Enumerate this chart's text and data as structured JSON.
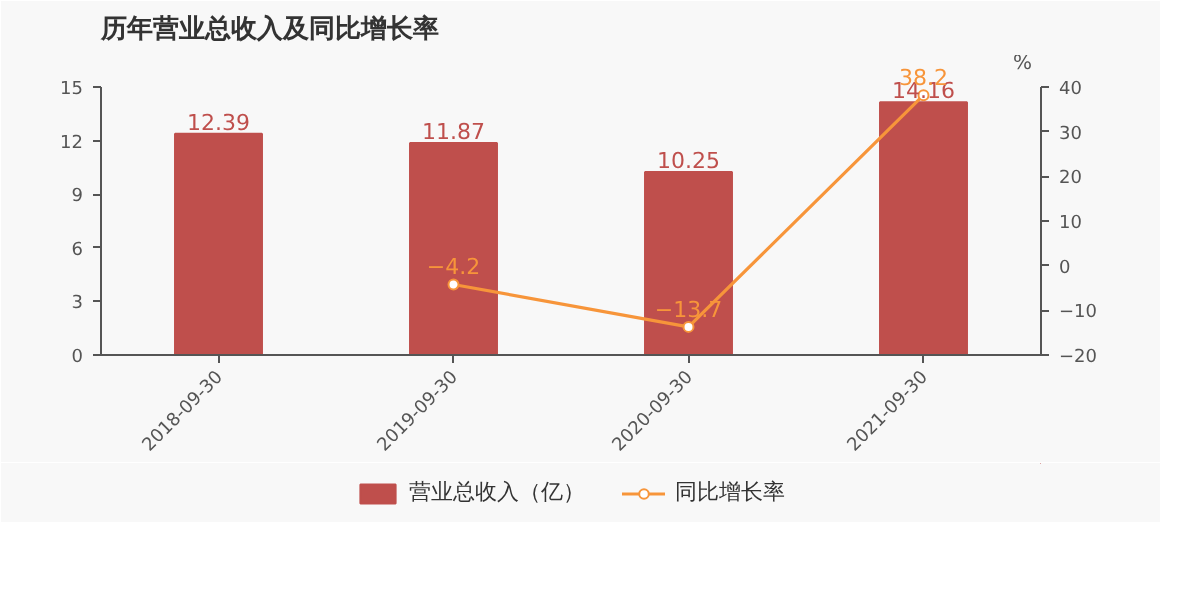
{
  "chart_data": {
    "type": "bar",
    "title": "历年营业总收入及同比增长率",
    "y2label": "%",
    "categories": [
      "2018-09-30",
      "2019-09-30",
      "2020-09-30",
      "2021-09-30"
    ],
    "series": [
      {
        "name": "营业总收入（亿）",
        "color": "#bf4f4c",
        "values": [
          12.39,
          11.87,
          10.25,
          14.16
        ]
      },
      {
        "name": "同比增长率",
        "type": "line",
        "axis": "y2",
        "color": "#f7953a",
        "marker": "circle",
        "values": [
          null,
          -4.2,
          -13.7,
          38.2
        ]
      }
    ],
    "ylim": [
      0,
      15
    ],
    "yticks": [
      0,
      3,
      6,
      9,
      12,
      15
    ],
    "y2lim": [
      -20,
      40
    ],
    "y2ticks": [
      -20,
      -10,
      0,
      10,
      20,
      30,
      40
    ],
    "data_labels": true,
    "grid": false,
    "legend": "bottom"
  }
}
